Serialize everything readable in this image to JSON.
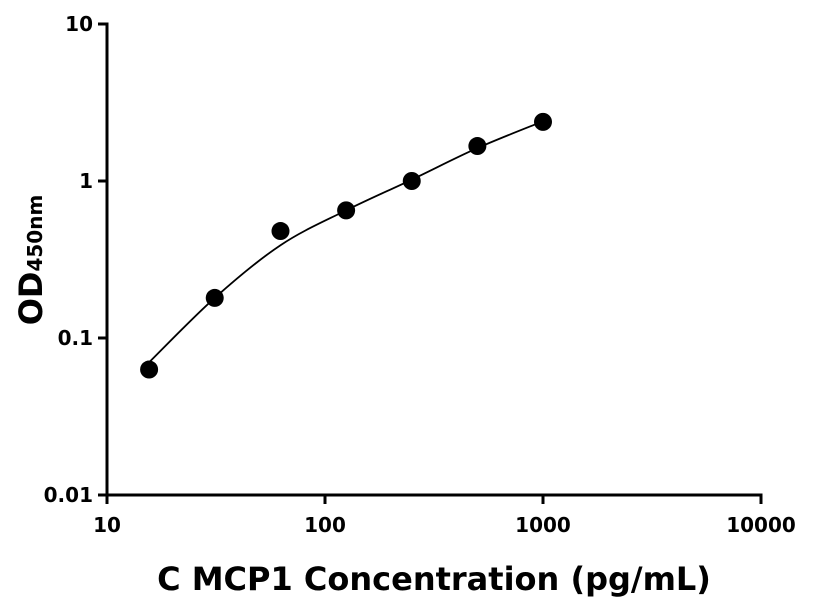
{
  "chart_data": {
    "type": "scatter",
    "x_label": "C MCP1 Concentration (pg/mL)",
    "y_label": "OD",
    "y_label_sub": "450nm",
    "x": [
      15.6,
      31.2,
      62.5,
      125,
      250,
      500,
      1000
    ],
    "series": [
      {
        "values": [
          0.063,
          0.18,
          0.48,
          0.65,
          1.0,
          1.67,
          2.38
        ],
        "color": "#000000"
      }
    ],
    "fit": {
      "values": [
        0.07,
        0.18,
        0.39,
        0.65,
        1.02,
        1.62,
        2.4
      ],
      "color": "#000000"
    },
    "xscale": "log",
    "yscale": "log",
    "xlim": [
      10,
      10000
    ],
    "ylim": [
      0.01,
      10
    ],
    "xticks": [
      10,
      100,
      1000,
      10000
    ],
    "yticks": [
      0.01,
      0.1,
      1,
      10
    ],
    "grid": false
  }
}
